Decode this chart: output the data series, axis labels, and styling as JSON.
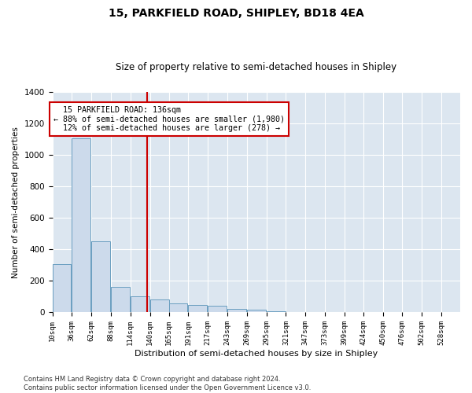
{
  "title": "15, PARKFIELD ROAD, SHIPLEY, BD18 4EA",
  "subtitle": "Size of property relative to semi-detached houses in Shipley",
  "xlabel": "Distribution of semi-detached houses by size in Shipley",
  "ylabel": "Number of semi-detached properties",
  "footnote": "Contains HM Land Registry data © Crown copyright and database right 2024.\nContains public sector information licensed under the Open Government Licence v3.0.",
  "annotation_line1": "  15 PARKFIELD ROAD: 136sqm",
  "annotation_line2": "← 88% of semi-detached houses are smaller (1,980)",
  "annotation_line3": "  12% of semi-detached houses are larger (278) →",
  "property_size": 136,
  "bin_starts": [
    10,
    36,
    62,
    88,
    114,
    140,
    165,
    191,
    217,
    243,
    269,
    295,
    321,
    347,
    373,
    399,
    424,
    450,
    476,
    502,
    528
  ],
  "bin_labels": [
    "10sqm",
    "36sqm",
    "62sqm",
    "88sqm",
    "114sqm",
    "140sqm",
    "165sqm",
    "191sqm",
    "217sqm",
    "243sqm",
    "269sqm",
    "295sqm",
    "321sqm",
    "347sqm",
    "373sqm",
    "399sqm",
    "424sqm",
    "450sqm",
    "476sqm",
    "502sqm",
    "528sqm"
  ],
  "values": [
    305,
    1105,
    450,
    160,
    100,
    80,
    55,
    45,
    40,
    20,
    15,
    5,
    2,
    0,
    0,
    0,
    0,
    0,
    0,
    0,
    0
  ],
  "bar_color": "#ccdaeb",
  "bar_edge_color": "#6a9ec0",
  "vline_color": "#cc0000",
  "annotation_box_edgecolor": "#cc0000",
  "bg_color": "#dce6f0",
  "grid_color": "#ffffff",
  "ylim": [
    0,
    1400
  ],
  "yticks": [
    0,
    200,
    400,
    600,
    800,
    1000,
    1200,
    1400
  ],
  "title_fontsize": 10,
  "subtitle_fontsize": 8.5,
  "ylabel_fontsize": 7.5,
  "xlabel_fontsize": 8,
  "ytick_fontsize": 7.5,
  "xtick_fontsize": 6.5,
  "annot_fontsize": 7.2,
  "footnote_fontsize": 6
}
